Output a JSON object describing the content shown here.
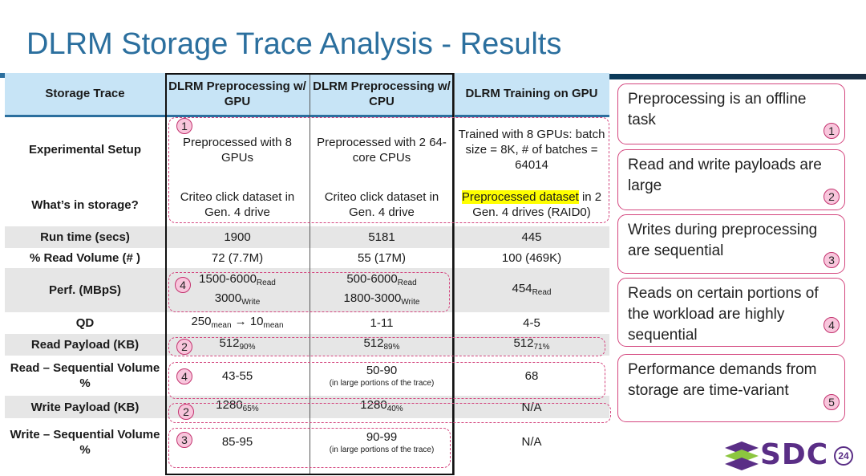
{
  "title": "DLRM Storage Trace Analysis - Results",
  "table": {
    "headers": [
      "Storage Trace",
      "DLRM Preprocessing w/ GPU",
      "DLRM Preprocessing w/ CPU",
      "DLRM Training on GPU"
    ],
    "rows": {
      "setup": {
        "label": "Experimental Setup",
        "gpu": "Preprocessed with 8 GPUs",
        "cpu": "Preprocessed with 2 64-core CPUs",
        "train": "Trained with 8 GPUs: batch size = 8K, # of batches = 64014"
      },
      "storage": {
        "label": "What’s in storage?",
        "gpu": "Criteo click dataset in Gen. 4 drive",
        "cpu": "Criteo click dataset in Gen. 4 drive",
        "train_hl": "Preprocessed dataset",
        "train_rest": " in 2 Gen. 4 drives (RAID0)"
      },
      "runtime": {
        "label": "Run time (secs)",
        "gpu": "1900",
        "cpu": "5181",
        "train": "445"
      },
      "readvol": {
        "label": "% Read Volume (# )",
        "gpu": "72 (7.7M)",
        "cpu": "55 (17M)",
        "train": "100 (469K)"
      },
      "perf": {
        "label": "Perf. (MBpS)",
        "gpu_read": "1500-6000",
        "gpu_write": "3000",
        "cpu_read": "500-6000",
        "cpu_write": "1800-3000",
        "train": "454",
        "sub_read": "Read",
        "sub_write": "Write"
      },
      "qd": {
        "label": "QD",
        "gpu_a": "250",
        "gpu_arrow": " → ",
        "gpu_b": "10",
        "sub_mean": "mean",
        "cpu": "1-11",
        "train": "4-5"
      },
      "readpay": {
        "label": "Read Payload (KB)",
        "gpu": "512",
        "gpu_sub": "90%",
        "cpu": "512",
        "cpu_sub": "89%",
        "train": "512",
        "train_sub": "71%"
      },
      "readseq": {
        "label": "Read – Sequential Volume %",
        "gpu": "43-55",
        "cpu": "50-90",
        "cpu_note": "(in large portions of the trace)",
        "train": "68"
      },
      "writepay": {
        "label": "Write Payload (KB)",
        "gpu": "1280",
        "gpu_sub": "65%",
        "cpu": "1280",
        "cpu_sub": "40%",
        "train": "N/A"
      },
      "writeseq": {
        "label": "Write – Sequential Volume %",
        "gpu": "85-95",
        "cpu": "90-99",
        "cpu_note": "(in large portions of the trace)",
        "train": "N/A"
      }
    }
  },
  "markers": {
    "m1": "1",
    "m4a": "4",
    "m2a": "2",
    "m4b": "4",
    "m2b": "2",
    "m3": "3"
  },
  "notes": [
    {
      "text": "Preprocessing is an offline task",
      "num": "1"
    },
    {
      "text": "Read and write payloads are large",
      "num": "2"
    },
    {
      "text": "Writes during preprocessing are sequential",
      "num": "3"
    },
    {
      "text": "Reads on certain portions of the workload are highly sequential",
      "num": "4"
    },
    {
      "text": "Performance demands from storage are time-variant",
      "num": "5"
    }
  ],
  "logo": {
    "text": "SDC",
    "page": "24"
  }
}
